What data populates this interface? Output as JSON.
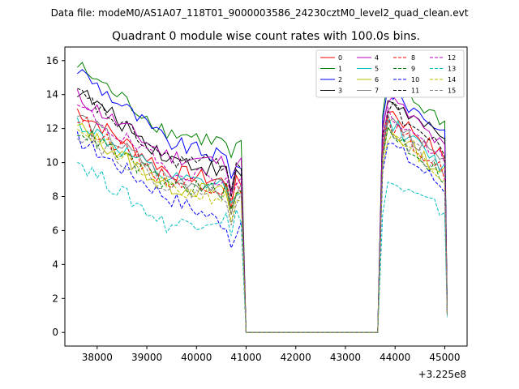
{
  "chart_data": {
    "type": "line",
    "suptitle": "Data file: modeM0/AS1A07_118T01_9000003586_24230cztM0_level2_quad_clean.evt",
    "title": "Quadrant 0 module wise count rates with 100.0s bins.",
    "xlabel": "",
    "ylabel": "",
    "x_offset_label": "+3.225e8",
    "xlim": [
      37350,
      45450
    ],
    "ylim": [
      -0.8,
      16.8
    ],
    "xticks": [
      38000,
      39000,
      40000,
      41000,
      42000,
      43000,
      44000,
      45000
    ],
    "yticks": [
      0,
      2,
      4,
      6,
      8,
      10,
      12,
      14,
      16
    ],
    "grid": false,
    "legend_position": "top-right",
    "gaps": {
      "first_segment": {
        "start": 37600,
        "end": 40900
      },
      "drop_to_zero": 41000,
      "zero_end": 43650,
      "second_segment": {
        "start": 43750,
        "end": 45000
      },
      "final_drop": 45050
    },
    "series": [
      {
        "name": "0",
        "color": "#ff0000",
        "dashed": false,
        "start": 13.1,
        "mid": 9.5,
        "pre_gap": 8.7,
        "spike": 13.5,
        "end": 10.2,
        "final": 1.2
      },
      {
        "name": "1",
        "color": "#008000",
        "dashed": false,
        "start": 15.7,
        "mid": 11.8,
        "pre_gap": 11.0,
        "spike": 14.8,
        "end": 12.4,
        "final": 1.5
      },
      {
        "name": "2",
        "color": "#0000ff",
        "dashed": false,
        "start": 15.5,
        "mid": 11.2,
        "pre_gap": 10.0,
        "spike": 14.5,
        "end": 11.8,
        "final": 1.3
      },
      {
        "name": "3",
        "color": "#000000",
        "dashed": false,
        "start": 14.3,
        "mid": 10.3,
        "pre_gap": 9.2,
        "spike": 14.0,
        "end": 11.2,
        "final": 1.2
      },
      {
        "name": "4",
        "color": "#bf00bf",
        "dashed": false,
        "start": 13.9,
        "mid": 10.4,
        "pre_gap": 9.9,
        "spike": 14.2,
        "end": 10.8,
        "final": 1.2
      },
      {
        "name": "5",
        "color": "#00bfbf",
        "dashed": false,
        "start": 12.4,
        "mid": 9.0,
        "pre_gap": 8.5,
        "spike": 12.8,
        "end": 9.6,
        "final": 1.0
      },
      {
        "name": "6",
        "color": "#bfbf00",
        "dashed": false,
        "start": 12.1,
        "mid": 8.6,
        "pre_gap": 8.1,
        "spike": 12.3,
        "end": 9.3,
        "final": 1.0
      },
      {
        "name": "7",
        "color": "#808080",
        "dashed": false,
        "start": 12.8,
        "mid": 9.1,
        "pre_gap": 8.3,
        "spike": 12.9,
        "end": 9.8,
        "final": 1.1
      },
      {
        "name": "8",
        "color": "#ff0000",
        "dashed": true,
        "start": 12.6,
        "mid": 9.0,
        "pre_gap": 8.4,
        "spike": 12.6,
        "end": 9.4,
        "final": 1.1
      },
      {
        "name": "9",
        "color": "#008000",
        "dashed": true,
        "start": 12.0,
        "mid": 8.7,
        "pre_gap": 8.2,
        "spike": 12.2,
        "end": 9.1,
        "final": 1.0
      },
      {
        "name": "10",
        "color": "#0000ff",
        "dashed": true,
        "start": 11.4,
        "mid": 8.0,
        "pre_gap": 6.0,
        "spike": 11.5,
        "end": 8.5,
        "final": 1.0
      },
      {
        "name": "11",
        "color": "#000000",
        "dashed": true,
        "start": 14.1,
        "mid": 10.2,
        "pre_gap": 9.8,
        "spike": 13.6,
        "end": 10.6,
        "final": 1.2
      },
      {
        "name": "12",
        "color": "#bf00bf",
        "dashed": true,
        "start": 13.3,
        "mid": 9.6,
        "pre_gap": 8.9,
        "spike": 13.2,
        "end": 10.1,
        "final": 1.1
      },
      {
        "name": "13",
        "color": "#00bfbf",
        "dashed": true,
        "start": 10.1,
        "mid": 6.3,
        "pre_gap": 6.9,
        "spike": 9.0,
        "end": 7.1,
        "final": 0.9
      },
      {
        "name": "14",
        "color": "#bfbf00",
        "dashed": true,
        "start": 12.2,
        "mid": 8.4,
        "pre_gap": 7.8,
        "spike": 11.8,
        "end": 8.9,
        "final": 1.0
      },
      {
        "name": "15",
        "color": "#808080",
        "dashed": true,
        "start": 11.8,
        "mid": 8.6,
        "pre_gap": 7.9,
        "spike": 12.4,
        "end": 9.2,
        "final": 1.0
      }
    ]
  }
}
